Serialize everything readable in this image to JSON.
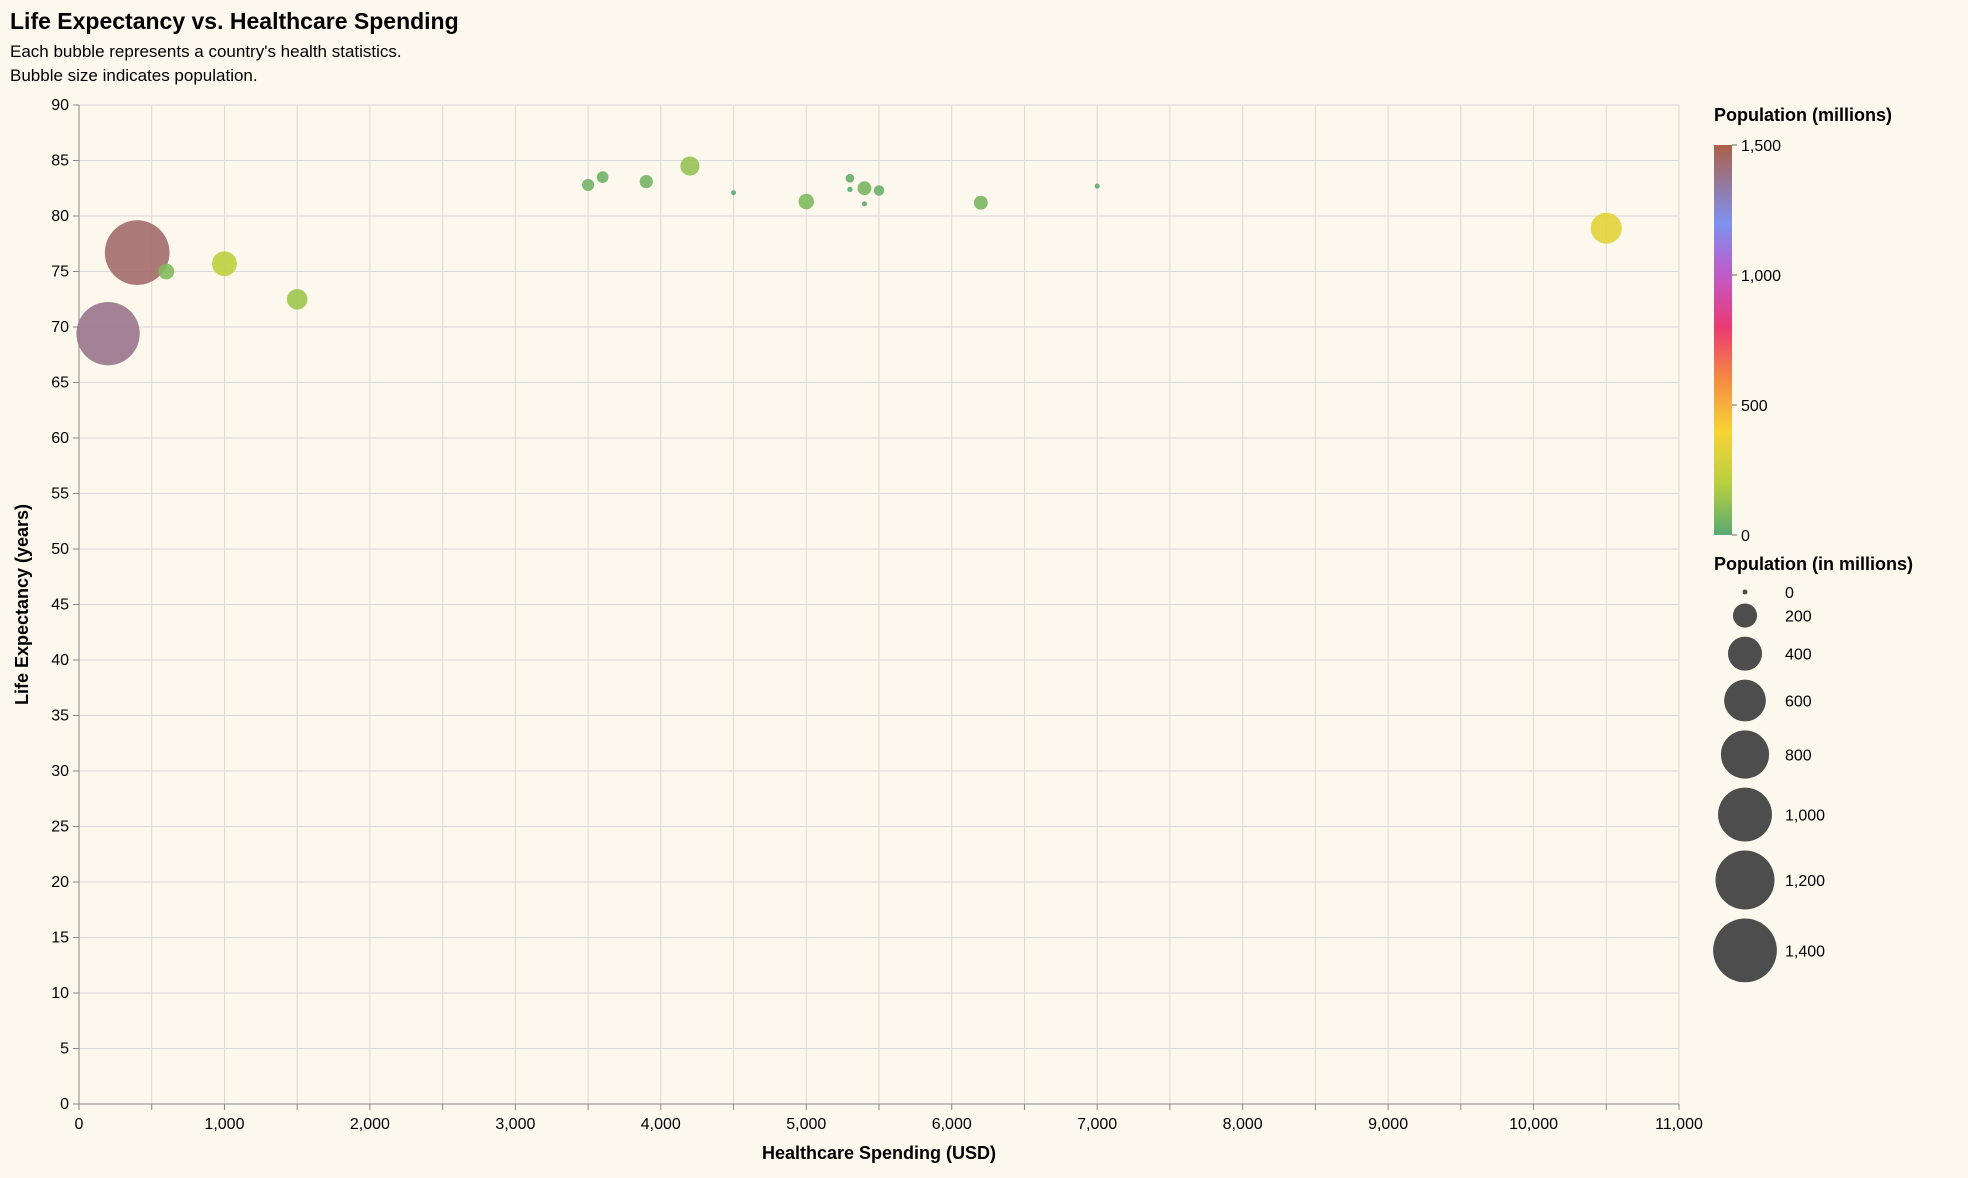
{
  "chart_data": {
    "type": "scatter",
    "title": "Life Expectancy vs. Healthcare Spending",
    "subtitle": [
      "Each bubble represents a country's health statistics.",
      "Bubble size indicates population."
    ],
    "xlabel": "Healthcare Spending (USD)",
    "ylabel": "Life Expectancy (years)",
    "xlim": [
      0,
      11000
    ],
    "ylim": [
      0,
      90
    ],
    "x_ticks": [
      0,
      1000,
      2000,
      3000,
      4000,
      5000,
      6000,
      7000,
      8000,
      9000,
      10000,
      11000
    ],
    "x_tick_labels": [
      "0",
      "1,000",
      "2,000",
      "3,000",
      "4,000",
      "5,000",
      "6,000",
      "7,000",
      "8,000",
      "9,000",
      "10,000",
      "11,000"
    ],
    "y_ticks": [
      0,
      5,
      10,
      15,
      20,
      25,
      30,
      35,
      40,
      45,
      50,
      55,
      60,
      65,
      70,
      75,
      80,
      85,
      90
    ],
    "y_tick_labels": [
      "0",
      "5",
      "10",
      "15",
      "20",
      "25",
      "30",
      "35",
      "40",
      "45",
      "50",
      "55",
      "60",
      "65",
      "70",
      "75",
      "80",
      "85",
      "90"
    ],
    "grid": true,
    "points": [
      {
        "x": 10500,
        "y": 78.9,
        "population": 331
      },
      {
        "x": 4200,
        "y": 84.5,
        "population": 126
      },
      {
        "x": 5000,
        "y": 81.3,
        "population": 83
      },
      {
        "x": 6200,
        "y": 81.2,
        "population": 67
      },
      {
        "x": 5400,
        "y": 82.5,
        "population": 67
      },
      {
        "x": 5500,
        "y": 82.3,
        "population": 38
      },
      {
        "x": 3900,
        "y": 83.1,
        "population": 60
      },
      {
        "x": 3600,
        "y": 83.5,
        "population": 47
      },
      {
        "x": 3500,
        "y": 82.8,
        "population": 51
      },
      {
        "x": 5300,
        "y": 83.4,
        "population": 26
      },
      {
        "x": 5300,
        "y": 82.4,
        "population": 10
      },
      {
        "x": 5400,
        "y": 81.1,
        "population": 9
      },
      {
        "x": 4500,
        "y": 82.1,
        "population": 5
      },
      {
        "x": 7000,
        "y": 82.7,
        "population": 9
      },
      {
        "x": 1000,
        "y": 75.7,
        "population": 213
      },
      {
        "x": 600,
        "y": 75.0,
        "population": 86
      },
      {
        "x": 1500,
        "y": 72.5,
        "population": 146
      },
      {
        "x": 400,
        "y": 76.7,
        "population": 1440
      },
      {
        "x": 200,
        "y": 69.4,
        "population": 1380
      }
    ],
    "color_legend": {
      "title": "Population (millions)",
      "domain": [
        0,
        1500
      ],
      "tick_values": [
        1500,
        1000,
        500,
        0
      ],
      "tick_labels": [
        "1,500",
        "1,000",
        "500",
        "0"
      ],
      "stops": [
        {
          "value": 0,
          "color": "#5aa874"
        },
        {
          "value": 200,
          "color": "#b9d03f"
        },
        {
          "value": 400,
          "color": "#f7d336"
        },
        {
          "value": 600,
          "color": "#f48a42"
        },
        {
          "value": 800,
          "color": "#ea3a73"
        },
        {
          "value": 1000,
          "color": "#c05ac8"
        },
        {
          "value": 1200,
          "color": "#7d92f0"
        },
        {
          "value": 1500,
          "color": "#ab6049"
        }
      ]
    },
    "size_legend": {
      "title": "Population (in millions)",
      "values": [
        0,
        200,
        400,
        600,
        800,
        1000,
        1200,
        1400
      ],
      "labels": [
        "0",
        "200",
        "400",
        "600",
        "800",
        "1,000",
        "1,200",
        "1,400"
      ],
      "color": "#4d4d4d"
    },
    "colors": {
      "background": "#fdf8ed",
      "grid": "#d9d9d9",
      "axis": "#888888"
    }
  }
}
